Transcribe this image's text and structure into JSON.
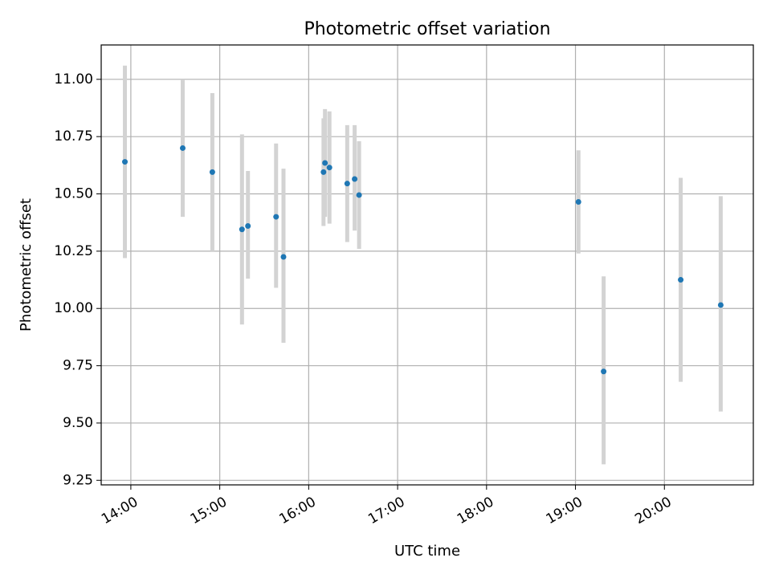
{
  "chart_data": {
    "type": "scatter",
    "title": "Photometric offset variation",
    "xlabel": "UTC time",
    "ylabel": "Photometric offset",
    "xlim": [
      "13:40",
      "21:00"
    ],
    "ylim": [
      9.23,
      11.15
    ],
    "xticks": [
      "14:00",
      "15:00",
      "16:00",
      "17:00",
      "18:00",
      "19:00",
      "20:00"
    ],
    "yticks": [
      "9.25",
      "9.50",
      "9.75",
      "10.00",
      "10.25",
      "10.50",
      "10.75",
      "11.00"
    ],
    "grid": true,
    "point_color": "#1f77b4",
    "errorbar_color": "#d3d3d3",
    "series": [
      {
        "points": [
          {
            "x": "13:56",
            "y": 10.64,
            "ylow": 10.22,
            "yhigh": 11.06
          },
          {
            "x": "14:35",
            "y": 10.7,
            "ylow": 10.4,
            "yhigh": 11.0
          },
          {
            "x": "14:55",
            "y": 10.595,
            "ylow": 10.25,
            "yhigh": 10.94
          },
          {
            "x": "15:15",
            "y": 10.345,
            "ylow": 9.93,
            "yhigh": 10.76
          },
          {
            "x": "15:19",
            "y": 10.36,
            "ylow": 10.13,
            "yhigh": 10.6
          },
          {
            "x": "15:38",
            "y": 10.4,
            "ylow": 10.09,
            "yhigh": 10.72
          },
          {
            "x": "15:43",
            "y": 10.225,
            "ylow": 9.85,
            "yhigh": 10.61
          },
          {
            "x": "16:10",
            "y": 10.595,
            "ylow": 10.36,
            "yhigh": 10.83
          },
          {
            "x": "16:11",
            "y": 10.635,
            "ylow": 10.4,
            "yhigh": 10.87
          },
          {
            "x": "16:14",
            "y": 10.615,
            "ylow": 10.37,
            "yhigh": 10.86
          },
          {
            "x": "16:26",
            "y": 10.545,
            "ylow": 10.29,
            "yhigh": 10.8
          },
          {
            "x": "16:31",
            "y": 10.565,
            "ylow": 10.34,
            "yhigh": 10.8
          },
          {
            "x": "16:34",
            "y": 10.495,
            "ylow": 10.26,
            "yhigh": 10.73
          },
          {
            "x": "19:02",
            "y": 10.465,
            "ylow": 10.24,
            "yhigh": 10.69
          },
          {
            "x": "19:19",
            "y": 9.725,
            "ylow": 9.32,
            "yhigh": 10.14
          },
          {
            "x": "20:11",
            "y": 10.125,
            "ylow": 9.68,
            "yhigh": 10.57
          },
          {
            "x": "20:38",
            "y": 10.015,
            "ylow": 9.55,
            "yhigh": 10.49
          }
        ]
      }
    ]
  }
}
